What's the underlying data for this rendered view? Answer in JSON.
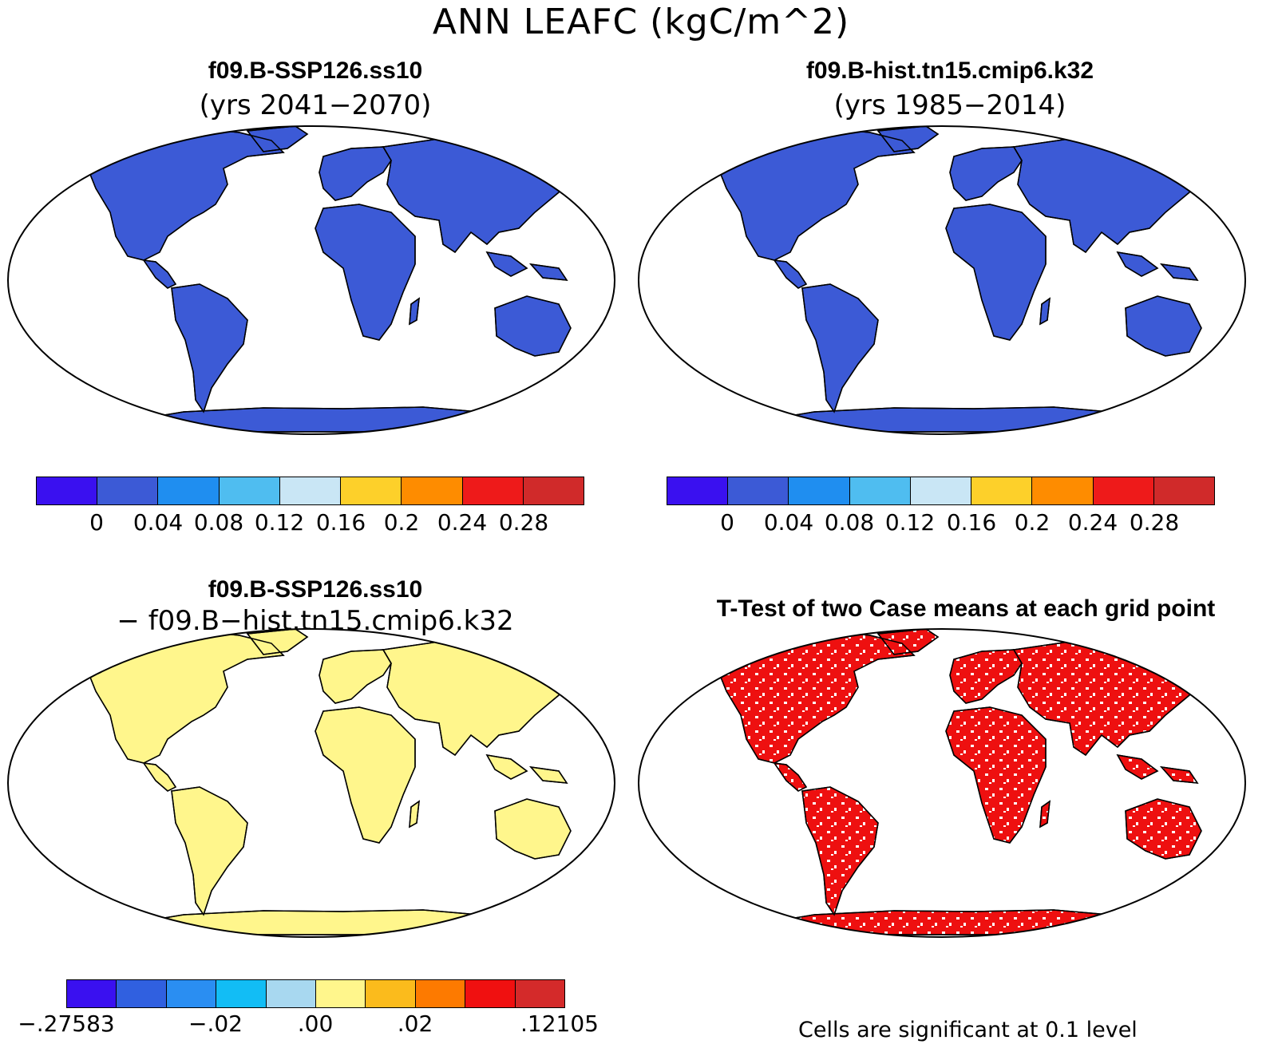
{
  "title": "ANN LEAFC (kgC/m^2)",
  "panels": {
    "top_left": {
      "title": "f09.B-SSP126.ss10",
      "subtitle": "(yrs 2041−2070)"
    },
    "top_right": {
      "title": "f09.B-hist.tn15.cmip6.k32",
      "subtitle": "(yrs 1985−2014)"
    },
    "bottom_left": {
      "title": "f09.B-SSP126.ss10",
      "subtitle": "− f09.B−hist.tn15.cmip6.k32"
    },
    "bottom_right": {
      "title": "T-Test of two Case means at each grid point",
      "note": "Cells are significant at 0.1 level"
    }
  },
  "colorbar_abs": {
    "colors": [
      "#3a10f0",
      "#3c5ad6",
      "#1f8ef0",
      "#4fbdf0",
      "#c9e6f5",
      "#fdd02a",
      "#fe8c00",
      "#ee1a1a",
      "#d02a2a"
    ],
    "labels": [
      "0",
      "0.04",
      "0.08",
      "0.12",
      "0.16",
      "0.2",
      "0.24",
      "0.28"
    ]
  },
  "colorbar_diff": {
    "colors": [
      "#3a10f0",
      "#3060e0",
      "#2a8ef2",
      "#12bdf5",
      "#a8d8f0",
      "#fff68c",
      "#fbbb1c",
      "#fd7a00",
      "#f01010",
      "#d42a2a"
    ],
    "labels": [
      "−.27583",
      "−.02",
      ".00",
      ".02",
      ".12105"
    ]
  },
  "colors": {
    "land_significant": "#ee1010",
    "land_base_abs": "#3c5ad6",
    "land_base_diff": "#fff68c"
  }
}
